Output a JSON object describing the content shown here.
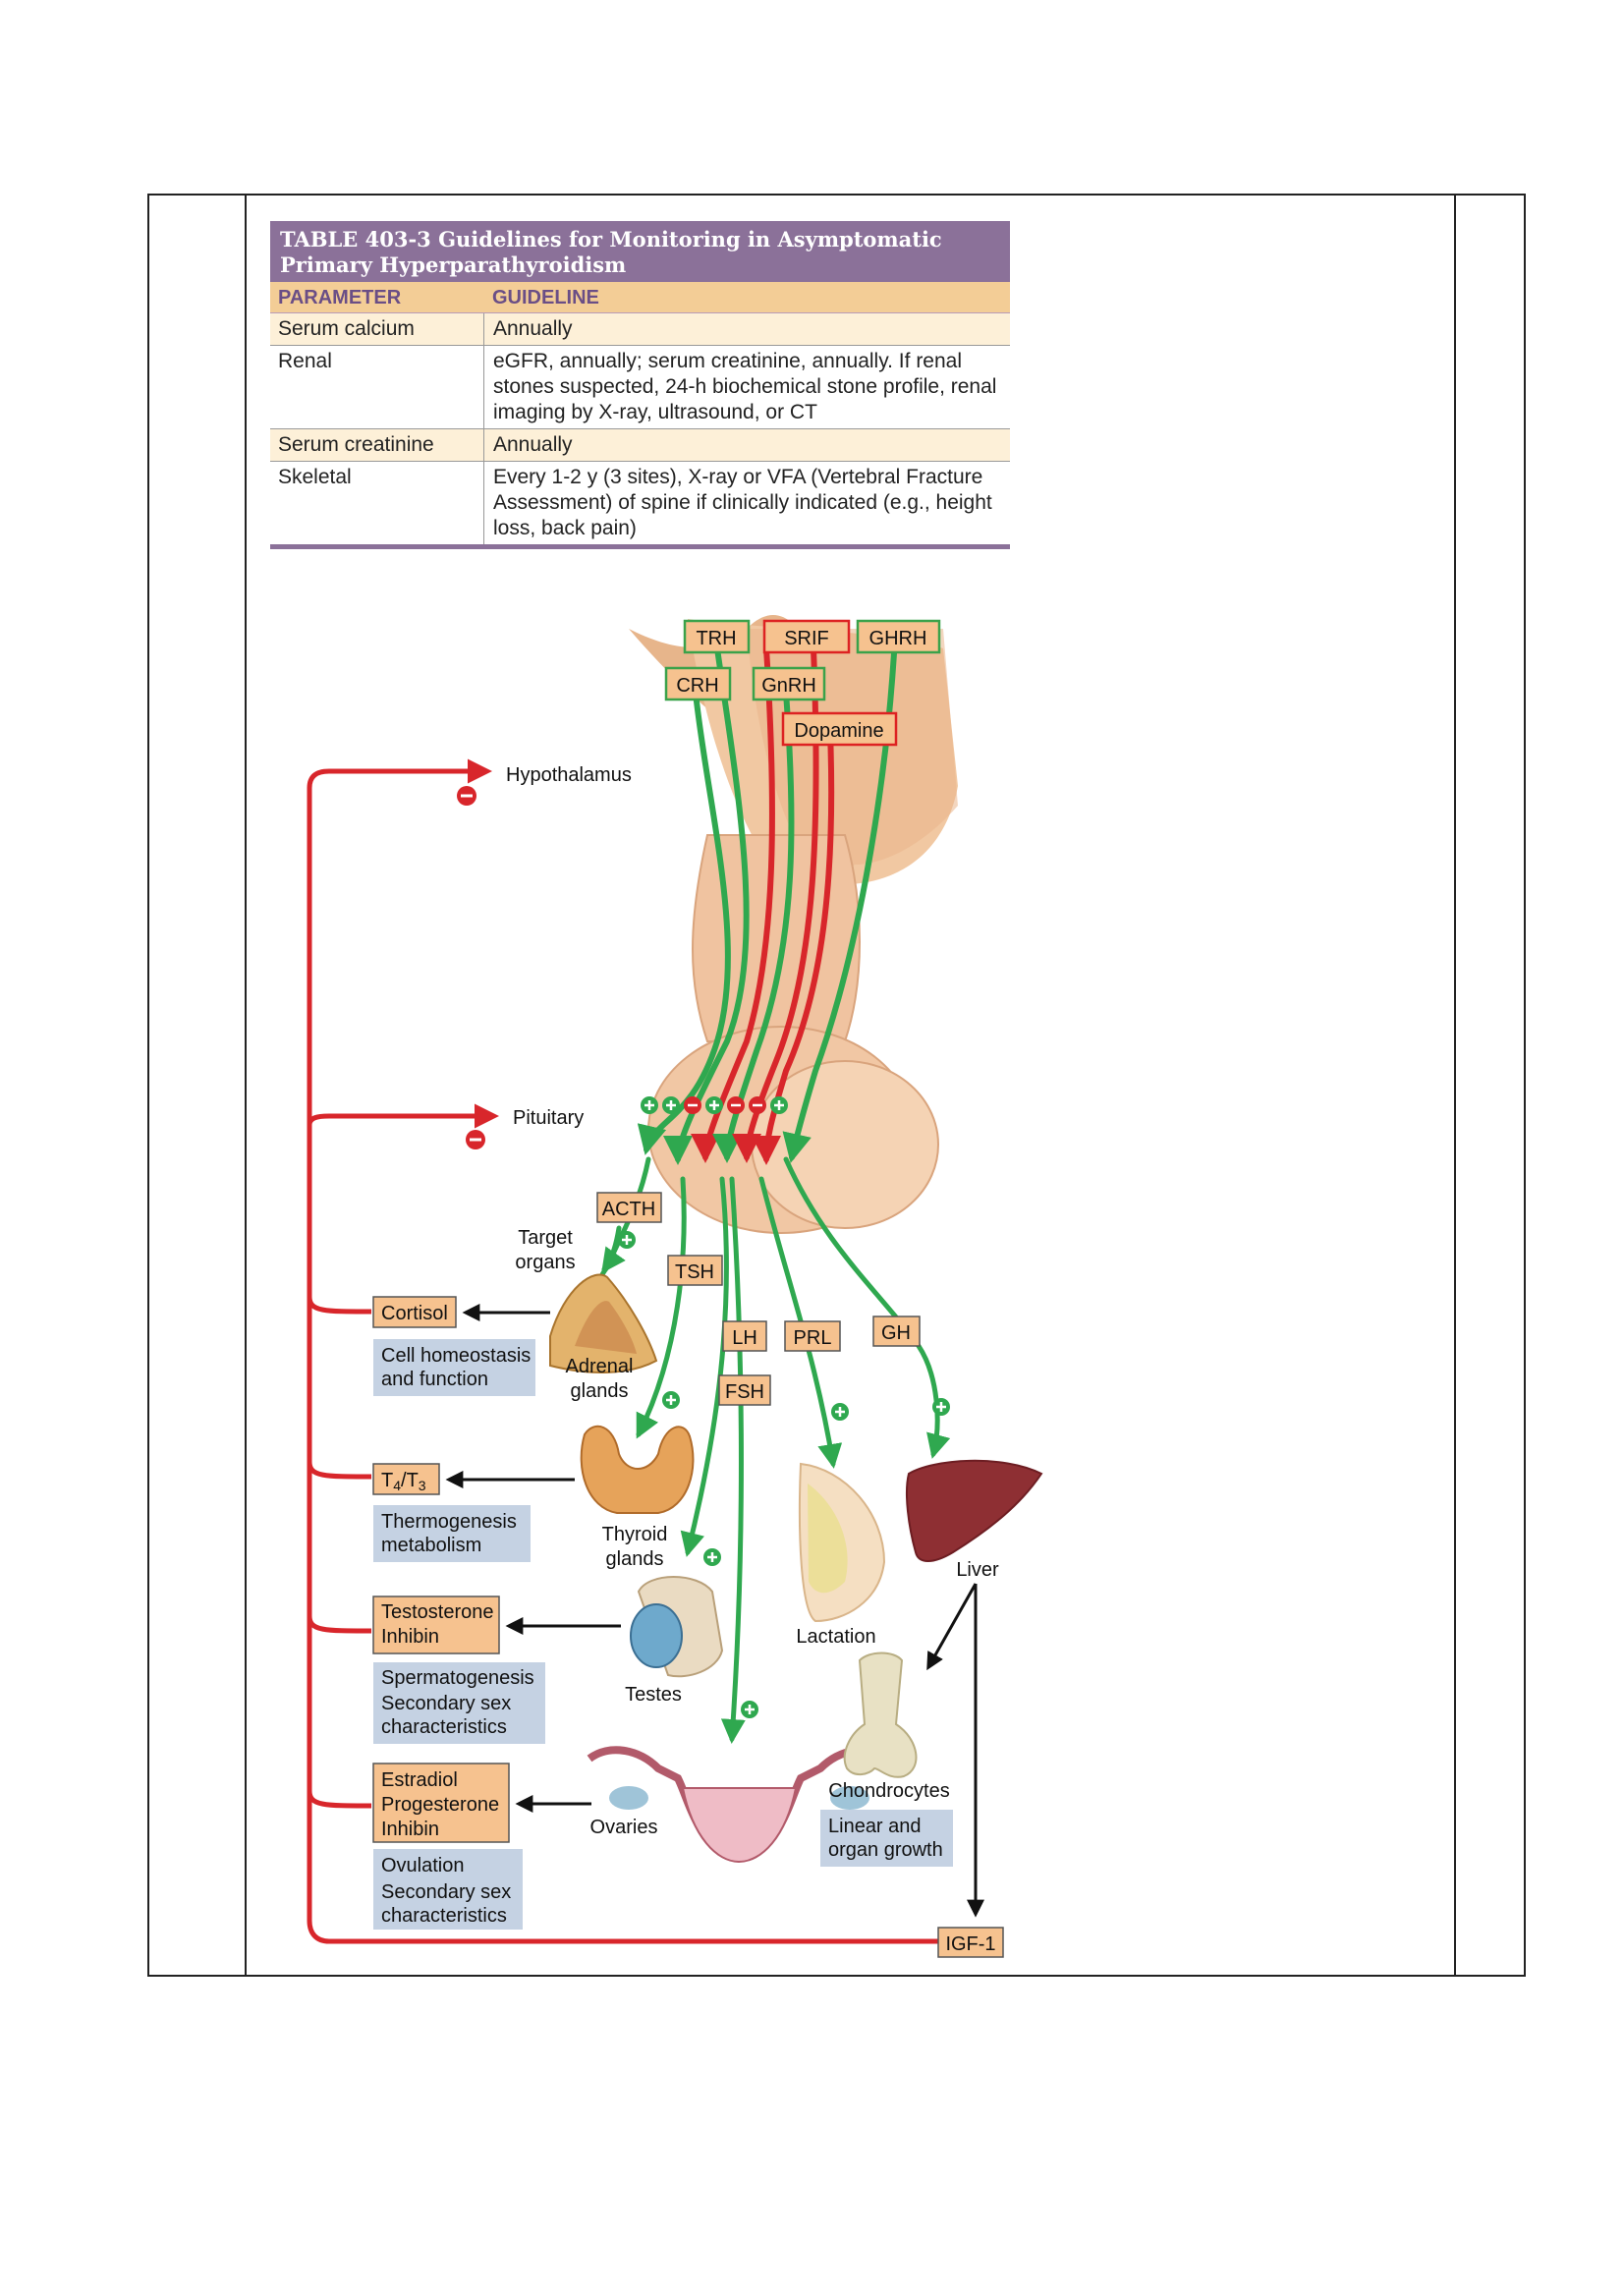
{
  "table": {
    "title": "TABLE 403-3  Guidelines for Monitoring in Asymptomatic Primary Hyperparathyroidism",
    "headers": [
      "PARAMETER",
      "GUIDELINE"
    ],
    "rows": [
      {
        "parameter": "Serum calcium",
        "guideline": "Annually"
      },
      {
        "parameter": "Renal",
        "guideline": "eGFR, annually; serum creatinine, annually. If renal stones suspected, 24-h biochemical stone profile, renal imaging by X-ray, ultrasound, or CT"
      },
      {
        "parameter": "Serum creatinine",
        "guideline": "Annually"
      },
      {
        "parameter": "Skeletal",
        "guideline": "Every 1-2 y (3 sites), X-ray or VFA (Vertebral Fracture Assessment) of spine if clinically indicated (e.g., height loss, back pain)"
      }
    ]
  },
  "figure": {
    "releasing_hormones": {
      "trh": "TRH",
      "srif": "SRIF",
      "ghrh": "GHRH",
      "crh": "CRH",
      "gnrh": "GnRH",
      "dopamine": "Dopamine"
    },
    "levels": {
      "hypothalamus": "Hypothalamus",
      "pituitary": "Pituitary"
    },
    "pituitary_hormones": {
      "acth": "ACTH",
      "tsh": "TSH",
      "lh": "LH",
      "fsh": "FSH",
      "prl": "PRL",
      "gh": "GH"
    },
    "target_organs_label": "Target organs",
    "organs": {
      "adrenal": "Adrenal glands",
      "thyroid": "Thyroid glands",
      "testes": "Testes",
      "ovaries": "Ovaries",
      "breast": "Lactation",
      "liver": "Liver",
      "bone": "Chondrocytes"
    },
    "products": {
      "cortisol": "Cortisol",
      "t4t3": "T4/T3",
      "testosterone": [
        "Testosterone",
        "Inhibin"
      ],
      "estradiol": [
        "Estradiol",
        "Progesterone",
        "Inhibin"
      ],
      "igf1": "IGF-1"
    },
    "effects": {
      "cortisol": [
        "Cell homeostasis",
        "and function"
      ],
      "thyroid": [
        "Thermogenesis",
        "metabolism"
      ],
      "testes": [
        "Spermatogenesis",
        "Secondary sex",
        "characteristics"
      ],
      "ovaries": [
        "Ovulation",
        "Secondary sex",
        "characteristics"
      ],
      "chondrocytes": [
        "Linear and",
        "organ growth"
      ]
    },
    "colors": {
      "stimulatory": "#2fa84f",
      "inhibitory": "#d8262b",
      "box_fill": "#f6c28f",
      "effect_fill": "#c5d2e3"
    }
  }
}
